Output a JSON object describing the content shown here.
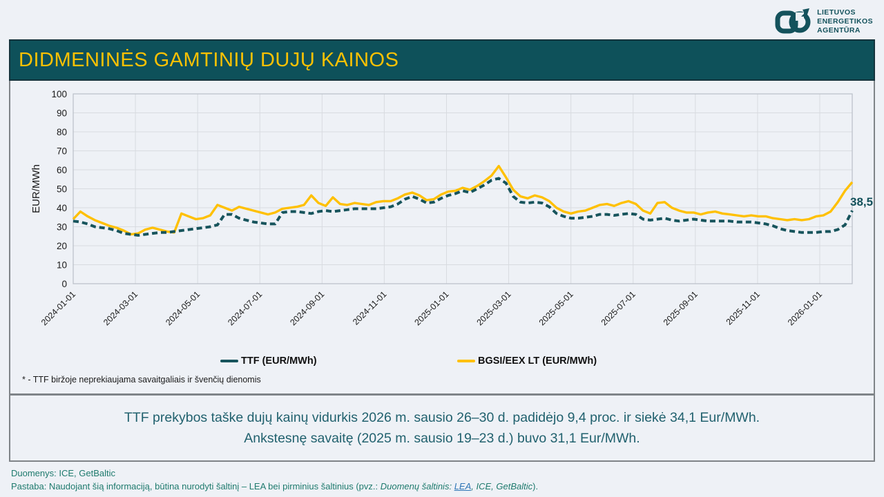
{
  "logo": {
    "line1": "LIETUVOS",
    "line2": "ENERGETIKOS",
    "line3": "AGENTŪRA"
  },
  "header": {
    "title": "DIDMENINĖS GAMTINIŲ DUJŲ KAINOS"
  },
  "colors": {
    "header_bg": "#0e515a",
    "title_gold": "#fcc103",
    "logo_teal": "#14525c",
    "grid": "#d8dbe0",
    "plot_border": "#b9bfc7",
    "axis_text": "#1a1a1a",
    "end_label_teal": "#12505a",
    "summary_text": "#21616e",
    "footer_text": "#1e7a6d",
    "link_blue": "#2e75b6"
  },
  "chart_data": {
    "type": "line",
    "ylabel": "EUR/MWh",
    "ylim": [
      0,
      100
    ],
    "ytick_step": 10,
    "grid": true,
    "legend_position": "bottom",
    "x_tick_labels": [
      "2024-01-01",
      "2024-03-01",
      "2024-05-01",
      "2024-07-01",
      "2024-09-01",
      "2024-11-01",
      "2025-01-01",
      "2025-03-01",
      "2025-05-01",
      "2025-07-01",
      "2025-09-01",
      "2025-11-01",
      "2026-01-01"
    ],
    "x_note": "weekly values from 2024-01-01 to 2026-01-30",
    "end_label": "38,5",
    "series": [
      {
        "name": "BGSI/EEX LT (EUR/MWh)",
        "color": "#ffc000",
        "dashed": false,
        "values": [
          34,
          38,
          35.5,
          33.5,
          32,
          30.5,
          29.5,
          28,
          26,
          26.5,
          28.5,
          29.5,
          28.5,
          27.5,
          27,
          37,
          35.5,
          34,
          34.5,
          36,
          41.5,
          40,
          38.5,
          40.5,
          39.5,
          38.5,
          37.5,
          36.5,
          37.5,
          39.5,
          40,
          40.5,
          41.5,
          46.5,
          42.5,
          41,
          45.5,
          42,
          41.5,
          42.5,
          42,
          41.5,
          43,
          43.5,
          43.5,
          45,
          47,
          48,
          46.5,
          44,
          44.5,
          47,
          48.5,
          49,
          50.5,
          49.5,
          51.5,
          54,
          57,
          62,
          56,
          49.5,
          46,
          45,
          46.5,
          45.5,
          43.5,
          40,
          38,
          37,
          38,
          38.5,
          40,
          41.5,
          42,
          41,
          42.5,
          43.5,
          42,
          38.5,
          37,
          42.5,
          43,
          40,
          38.5,
          37.5,
          37.5,
          36.5,
          37.5,
          38,
          37,
          36.5,
          36,
          35.5,
          36,
          35.5,
          35.5,
          34.5,
          34,
          33.5,
          34,
          33.5,
          34,
          35.5,
          36,
          38,
          43,
          49,
          53.5
        ]
      },
      {
        "name": "TTF (EUR/MWh)",
        "color": "#17545c",
        "dashed": true,
        "values": [
          33,
          32.5,
          31.5,
          30,
          29.5,
          29,
          28,
          26.5,
          26,
          25.5,
          26,
          26.5,
          27,
          27,
          27.5,
          28,
          28.5,
          29,
          29.5,
          30,
          31,
          36.5,
          36.5,
          34.5,
          33.5,
          32.5,
          32,
          31.5,
          31.5,
          37.5,
          38,
          38,
          37.5,
          37,
          38,
          38.5,
          38,
          38.5,
          39,
          39.5,
          39.5,
          39.5,
          39.5,
          40,
          40.5,
          42,
          44.5,
          46,
          44.5,
          42.5,
          43,
          45,
          46.5,
          47.5,
          49,
          48,
          50,
          52,
          54.5,
          55.5,
          53,
          46,
          43,
          42.5,
          43,
          42.5,
          40.5,
          37,
          35.5,
          34.5,
          34.5,
          35,
          35.5,
          36.5,
          36.5,
          36,
          36.5,
          37,
          36.5,
          34,
          33.5,
          34,
          34.5,
          33.5,
          33,
          33.5,
          34,
          33.5,
          33,
          33,
          33,
          33,
          32.5,
          32.5,
          32.5,
          32,
          31.5,
          30.5,
          29,
          28,
          27.5,
          27,
          27,
          27,
          27.5,
          27.5,
          28.5,
          31,
          38.5
        ]
      }
    ]
  },
  "footnote": "* - TTF biržoje neprekiaujama savaitgaliais ir švenčių dienomis",
  "summary": {
    "line1": "TTF prekybos taške dujų kainų vidurkis 2026 m. sausio 26–30 d. padidėjo 9,4 proc. ir siekė 34,1 Eur/MWh.",
    "line2": "Ankstesnę savaitę (2025 m. sausio 19–23 d.) buvo 31,1 Eur/MWh."
  },
  "footer": {
    "line1": "Duomenys: ICE, GetBaltic",
    "note_prefix": "Pastaba: Naudojant šią informaciją, būtina nurodyti šaltinį – LEA bei pirminius šaltinius (pvz.: ",
    "note_italic": "Duomenų šaltinis: ",
    "link_text": "LEA",
    "note_after": ", ICE, GetBaltic",
    "note_close": ")."
  }
}
